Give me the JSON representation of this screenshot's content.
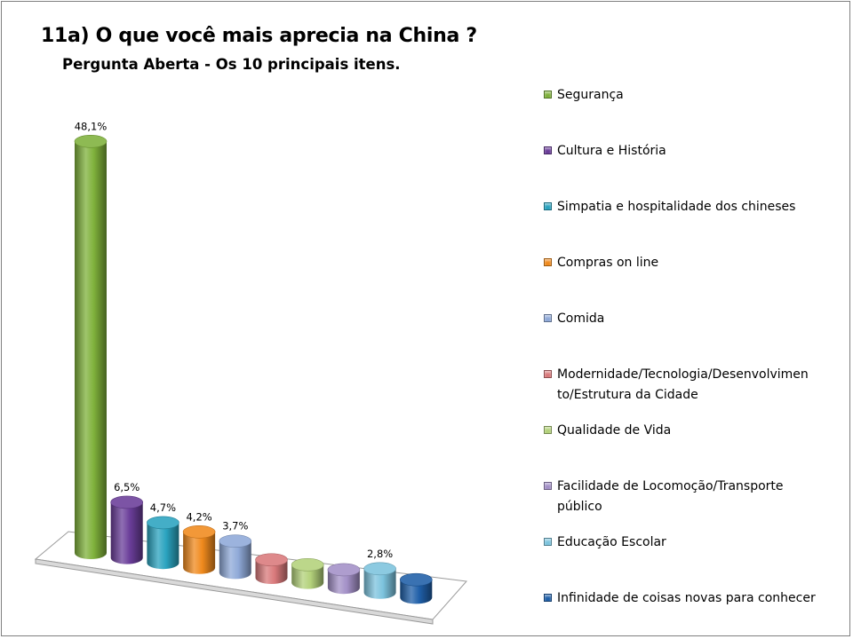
{
  "title": "11a) O que você mais aprecia na China ?",
  "subtitle": "Pergunta Aberta - Os 10 principais itens.",
  "chart_data": {
    "type": "bar",
    "style": "3d-cylinder",
    "legend_position": "right",
    "grid": false,
    "ylim": [
      0,
      50
    ],
    "categories": [
      "Segurança",
      "Cultura e História",
      "Simpatia e hospitalidade dos chineses",
      "Compras on line",
      "Comida",
      "Modernidade/Tecnologia/Desenvolvimen\nto/Estrutura da Cidade",
      "Qualidade de Vida",
      "Facilidade de Locomoção/Transporte\npúblico",
      "Educação Escolar",
      "Infinidade de coisas novas para conhecer"
    ],
    "values": [
      48.1,
      6.5,
      4.7,
      4.2,
      3.7,
      null,
      null,
      null,
      2.8,
      null
    ],
    "data_labels": [
      "48,1%",
      "6,5%",
      "4,7%",
      "4,2%",
      "3,7%",
      "",
      "",
      "",
      "2,8%",
      ""
    ],
    "colors": [
      "#7fb13b",
      "#6a3d99",
      "#2aa3bf",
      "#f08a1d",
      "#8fa9d8",
      "#d9797b",
      "#b3d17a",
      "#a390c7",
      "#7cc3dd",
      "#1f5fa8"
    ]
  }
}
